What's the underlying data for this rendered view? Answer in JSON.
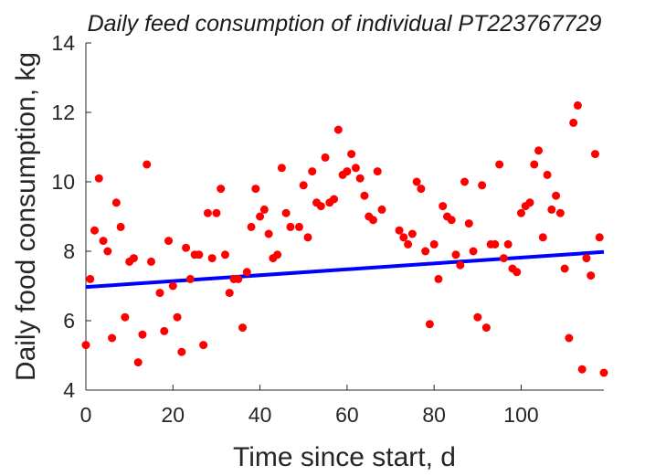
{
  "chart_data": {
    "type": "scatter",
    "title": "Daily feed consumption of individual PT223767729",
    "xlabel": "Time since start, d",
    "ylabel": "Daily food consumption, kg",
    "xlim": [
      0,
      119
    ],
    "ylim": [
      4,
      14
    ],
    "xticks": [
      0,
      20,
      40,
      60,
      80,
      100
    ],
    "yticks": [
      4,
      6,
      8,
      10,
      12,
      14
    ],
    "grid": false,
    "colors": {
      "points": "#ff0000",
      "fit_line": "#0000ff",
      "axes": "#262626"
    },
    "points": [
      [
        0,
        5.3
      ],
      [
        1,
        7.2
      ],
      [
        2,
        8.6
      ],
      [
        3,
        10.1
      ],
      [
        4,
        8.3
      ],
      [
        5,
        8.0
      ],
      [
        6,
        5.5
      ],
      [
        7,
        9.4
      ],
      [
        8,
        8.7
      ],
      [
        9,
        6.1
      ],
      [
        10,
        7.7
      ],
      [
        11,
        7.8
      ],
      [
        12,
        4.8
      ],
      [
        13,
        5.6
      ],
      [
        14,
        10.5
      ],
      [
        15,
        7.7
      ],
      [
        17,
        6.8
      ],
      [
        18,
        5.7
      ],
      [
        19,
        8.3
      ],
      [
        20,
        7.0
      ],
      [
        21,
        6.1
      ],
      [
        22,
        5.1
      ],
      [
        23,
        8.1
      ],
      [
        24,
        7.2
      ],
      [
        25,
        7.9
      ],
      [
        26,
        7.9
      ],
      [
        27,
        5.3
      ],
      [
        28,
        9.1
      ],
      [
        29,
        7.8
      ],
      [
        30,
        9.1
      ],
      [
        31,
        9.8
      ],
      [
        32,
        7.9
      ],
      [
        33,
        6.8
      ],
      [
        34,
        7.2
      ],
      [
        35,
        7.2
      ],
      [
        36,
        5.8
      ],
      [
        37,
        7.4
      ],
      [
        38,
        8.7
      ],
      [
        39,
        9.8
      ],
      [
        40,
        9.0
      ],
      [
        41,
        9.2
      ],
      [
        42,
        8.5
      ],
      [
        43,
        7.8
      ],
      [
        44,
        7.9
      ],
      [
        45,
        10.4
      ],
      [
        46,
        9.1
      ],
      [
        47,
        8.7
      ],
      [
        49,
        8.7
      ],
      [
        50,
        9.9
      ],
      [
        51,
        8.4
      ],
      [
        52,
        10.3
      ],
      [
        53,
        9.4
      ],
      [
        54,
        9.3
      ],
      [
        55,
        10.7
      ],
      [
        56,
        9.4
      ],
      [
        57,
        9.5
      ],
      [
        58,
        11.5
      ],
      [
        59,
        10.2
      ],
      [
        60,
        10.3
      ],
      [
        61,
        10.8
      ],
      [
        62,
        10.4
      ],
      [
        63,
        10.1
      ],
      [
        64,
        9.6
      ],
      [
        65,
        9.0
      ],
      [
        66,
        8.9
      ],
      [
        67,
        10.3
      ],
      [
        68,
        9.2
      ],
      [
        72,
        8.6
      ],
      [
        73,
        8.4
      ],
      [
        74,
        8.2
      ],
      [
        75,
        8.5
      ],
      [
        76,
        10.0
      ],
      [
        77,
        9.8
      ],
      [
        78,
        8.0
      ],
      [
        79,
        5.9
      ],
      [
        80,
        8.2
      ],
      [
        81,
        7.2
      ],
      [
        82,
        9.3
      ],
      [
        83,
        9.0
      ],
      [
        84,
        8.9
      ],
      [
        85,
        7.9
      ],
      [
        86,
        7.6
      ],
      [
        87,
        10.0
      ],
      [
        88,
        8.8
      ],
      [
        89,
        8.0
      ],
      [
        90,
        6.1
      ],
      [
        91,
        9.9
      ],
      [
        92,
        5.8
      ],
      [
        93,
        8.2
      ],
      [
        94,
        8.2
      ],
      [
        95,
        10.5
      ],
      [
        96,
        7.8
      ],
      [
        97,
        8.2
      ],
      [
        98,
        7.5
      ],
      [
        99,
        7.4
      ],
      [
        100,
        9.1
      ],
      [
        101,
        9.3
      ],
      [
        102,
        9.4
      ],
      [
        103,
        10.5
      ],
      [
        104,
        10.9
      ],
      [
        105,
        8.4
      ],
      [
        106,
        10.2
      ],
      [
        107,
        9.2
      ],
      [
        108,
        9.6
      ],
      [
        109,
        9.1
      ],
      [
        110,
        7.5
      ],
      [
        111,
        5.5
      ],
      [
        112,
        11.7
      ],
      [
        113,
        12.2
      ],
      [
        114,
        4.6
      ],
      [
        115,
        7.8
      ],
      [
        116,
        7.3
      ],
      [
        117,
        10.8
      ],
      [
        118,
        8.4
      ],
      [
        119,
        4.5
      ]
    ],
    "fit_line": {
      "x": [
        0,
        119
      ],
      "y": [
        6.97,
        7.98
      ]
    }
  }
}
